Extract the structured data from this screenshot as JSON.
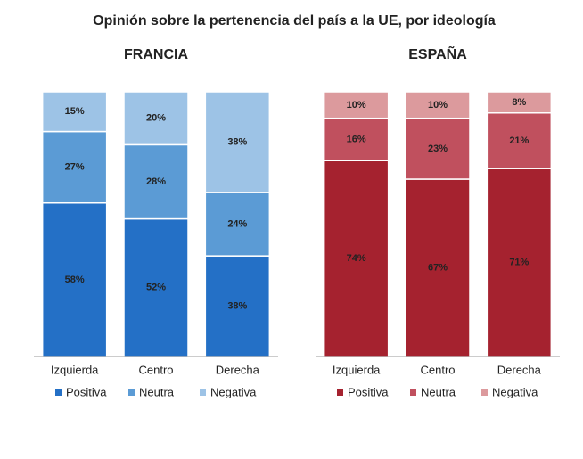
{
  "title": "Opinión sobre la pertenencia del país a la UE, por ideología",
  "chart_data": [
    {
      "type": "bar",
      "stacked": true,
      "title": "FRANCIA",
      "title_color": "#2470c6",
      "categories": [
        "Izquierda",
        "Centro",
        "Derecha"
      ],
      "ylim": [
        0,
        100
      ],
      "series": [
        {
          "name": "Positiva",
          "color": "#2470c6",
          "values": [
            58,
            52,
            38
          ],
          "value_labels": [
            "58%",
            "52%",
            "38%"
          ]
        },
        {
          "name": "Neutra",
          "color": "#5b9bd5",
          "values": [
            27,
            28,
            24
          ],
          "value_labels": [
            "27%",
            "28%",
            "24%"
          ]
        },
        {
          "name": "Negativa",
          "color": "#9dc3e6",
          "values": [
            15,
            20,
            38
          ],
          "value_labels": [
            "15%",
            "20%",
            "38%"
          ]
        }
      ]
    },
    {
      "type": "bar",
      "stacked": true,
      "title": "ESPAÑA",
      "title_color": "#a5222f",
      "categories": [
        "Izquierda",
        "Centro",
        "Derecha"
      ],
      "ylim": [
        0,
        100
      ],
      "series": [
        {
          "name": "Positiva",
          "color": "#a5222f",
          "values": [
            74,
            67,
            71
          ],
          "value_labels": [
            "74%",
            "67%",
            "71%"
          ]
        },
        {
          "name": "Neutra",
          "color": "#c0505e",
          "values": [
            16,
            23,
            21
          ],
          "value_labels": [
            "16%",
            "23%",
            "21%"
          ]
        },
        {
          "name": "Negativa",
          "color": "#dc9a9d",
          "values": [
            10,
            10,
            8
          ],
          "value_labels": [
            "10%",
            "10%",
            "8%"
          ]
        }
      ]
    }
  ]
}
